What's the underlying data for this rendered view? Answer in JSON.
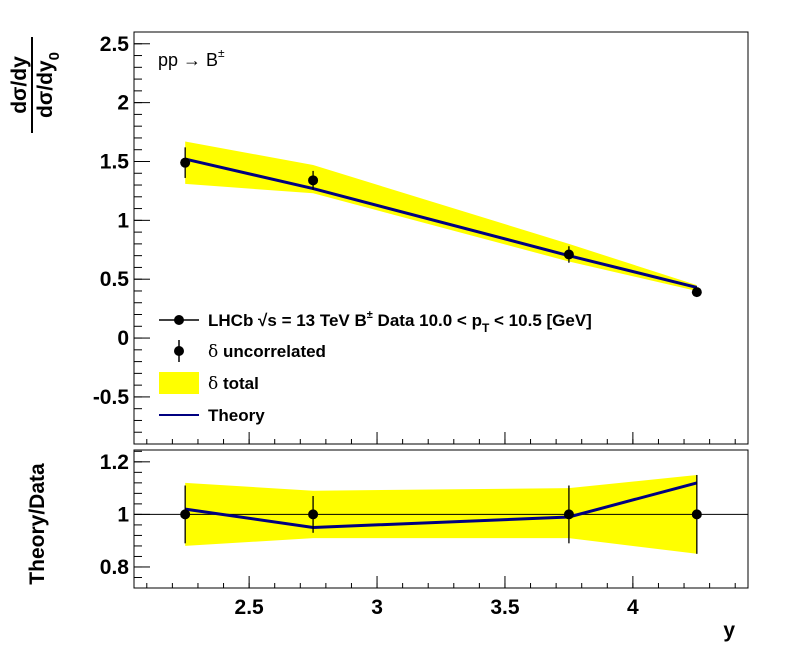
{
  "chart_data": [
    {
      "type": "line",
      "panel": "main",
      "ylabel_num": "dσ/dy",
      "ylabel_den": "dσ/dy",
      "ylabel_den_sub": "0",
      "annotation": "pp → B",
      "annotation_sup": "±",
      "ylim": [
        -0.9,
        2.6
      ],
      "yticks": [
        -0.5,
        0,
        0.5,
        1,
        1.5,
        2,
        2.5
      ],
      "ytick_labels": [
        "-0.5",
        "0",
        "0.5",
        "1",
        "1.5",
        "2",
        "2.5"
      ],
      "series": [
        {
          "name": "data",
          "x": [
            2.25,
            2.75,
            3.75,
            4.25
          ],
          "y": [
            1.49,
            1.34,
            0.71,
            0.39
          ],
          "err": [
            0.13,
            0.08,
            0.07,
            0.04
          ]
        },
        {
          "name": "total_band",
          "x": [
            2.25,
            2.75,
            3.75,
            4.25
          ],
          "lo": [
            1.31,
            1.23,
            0.65,
            0.4
          ],
          "hi": [
            1.67,
            1.47,
            0.8,
            0.45
          ]
        },
        {
          "name": "theory",
          "x": [
            2.25,
            2.75,
            3.75,
            4.25
          ],
          "y": [
            1.52,
            1.27,
            0.7,
            0.43
          ]
        }
      ],
      "legend": {
        "data_pre": "LHCb ",
        "data_sqrt": "√",
        "data_s": "s = 13 TeV B",
        "data_sup": "±",
        "data_mid": " Data 10.0 < p",
        "data_sub": "T",
        "data_post": " < 10.5 [GeV]",
        "uncorr_delta": "δ",
        "uncorr_text": " uncorrelated",
        "total_delta": "δ",
        "total_text": " total",
        "theory_text": "Theory"
      }
    },
    {
      "type": "line",
      "panel": "ratio",
      "ylabel": "Theory/Data",
      "xlabel": "y",
      "xlim": [
        2.05,
        4.45
      ],
      "xticks": [
        2.5,
        3,
        3.5,
        4
      ],
      "xtick_labels": [
        "2.5",
        "3",
        "3.5",
        "4"
      ],
      "ylim": [
        0.72,
        1.245
      ],
      "yticks": [
        0.8,
        1,
        1.2
      ],
      "ytick_labels": [
        "0.8",
        "1",
        "1.2"
      ],
      "reference_line": 1,
      "series": [
        {
          "name": "data_ratio",
          "x": [
            2.25,
            2.75,
            3.75,
            4.25
          ],
          "y": [
            1.0,
            1.0,
            1.0,
            1.0
          ],
          "err": [
            0.11,
            0.07,
            0.11,
            0.15
          ]
        },
        {
          "name": "total_band",
          "x": [
            2.25,
            2.75,
            3.75,
            4.25
          ],
          "lo": [
            0.88,
            0.91,
            0.91,
            0.85
          ],
          "hi": [
            1.12,
            1.09,
            1.1,
            1.15
          ]
        },
        {
          "name": "theory_ratio",
          "x": [
            2.25,
            2.75,
            3.75,
            4.25
          ],
          "y": [
            1.02,
            0.95,
            0.99,
            1.12
          ]
        }
      ]
    }
  ],
  "colors": {
    "band": "#ffff00",
    "theory": "#000080",
    "data": "#000000"
  }
}
